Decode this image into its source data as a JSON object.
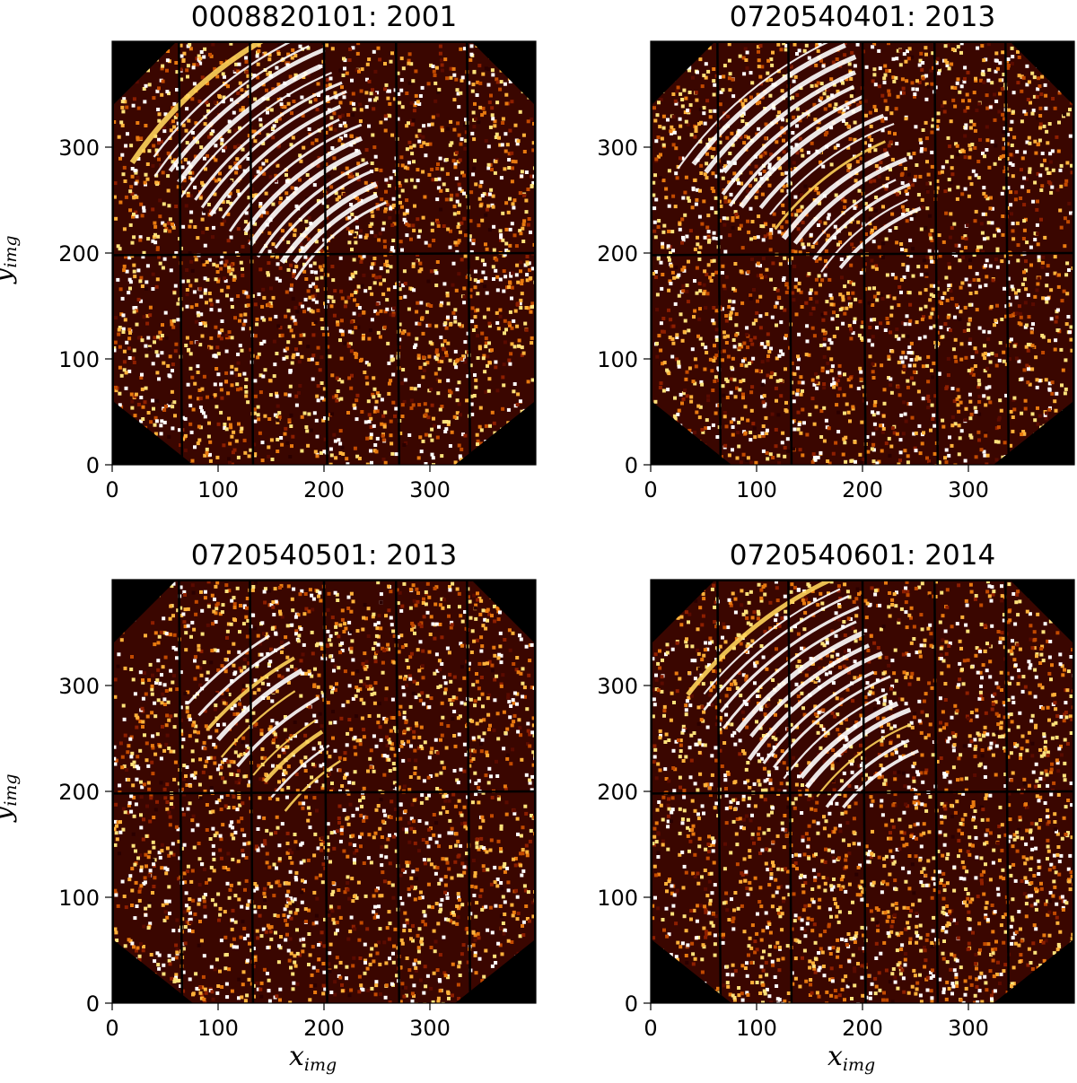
{
  "figure": {
    "panels": [
      {
        "title": "0008820101: 2001",
        "ylabel": "y",
        "ylabel_sub": "img",
        "xlabel": "",
        "xlabel_sub": ""
      },
      {
        "title": "0720540401: 2013",
        "ylabel": "",
        "ylabel_sub": "",
        "xlabel": "",
        "xlabel_sub": ""
      },
      {
        "title": "0720540501: 2013",
        "ylabel": "y",
        "ylabel_sub": "img",
        "xlabel": "x",
        "xlabel_sub": "img"
      },
      {
        "title": "0720540601: 2014",
        "ylabel": "",
        "ylabel_sub": "",
        "xlabel": "x",
        "xlabel_sub": "img"
      }
    ],
    "x_ticks": [
      "0",
      "100",
      "200",
      "300"
    ],
    "y_ticks": [
      "0",
      "100",
      "200",
      "300"
    ],
    "image_extent": {
      "xlim": [
        0,
        400
      ],
      "ylim": [
        0,
        400
      ]
    },
    "colormap": "afmhot",
    "background_color": "#000000"
  }
}
